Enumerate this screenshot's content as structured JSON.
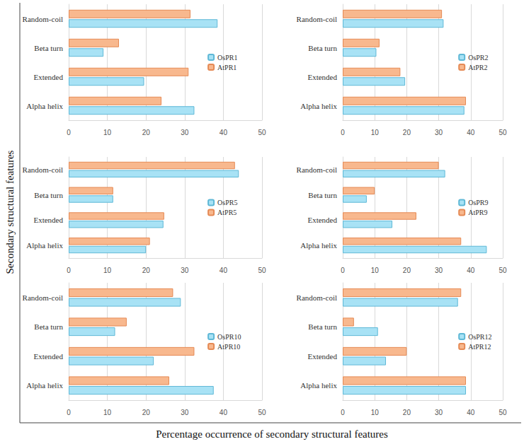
{
  "xlabel": "Percentage occurrence of secondary structural features",
  "ylabel": "Secondary structural features",
  "chart_data": [
    {
      "type": "bar",
      "orientation": "horizontal",
      "grid": true,
      "legend": "right",
      "categories": [
        "Alpha helix",
        "Extended",
        "Beta turn",
        "Random-coil"
      ],
      "series": [
        {
          "name": "OsPR1",
          "color": "#a8e2f5",
          "values": [
            32.5,
            19.5,
            9,
            38.5
          ]
        },
        {
          "name": "AtPR1",
          "color": "#f8b88e",
          "values": [
            24,
            31,
            13,
            31.5
          ]
        }
      ],
      "xlim": [
        0,
        50
      ],
      "xticks": [
        0,
        10,
        20,
        30,
        40,
        50
      ]
    },
    {
      "type": "bar",
      "orientation": "horizontal",
      "grid": true,
      "legend": "right",
      "categories": [
        "Alpha helix",
        "Extended",
        "Beta turn",
        "Random-coil"
      ],
      "series": [
        {
          "name": "OsPR2",
          "color": "#a8e2f5",
          "values": [
            38,
            19.5,
            10.5,
            31.5
          ]
        },
        {
          "name": "AtPR2",
          "color": "#f8b88e",
          "values": [
            38.5,
            18,
            11.5,
            31
          ]
        }
      ],
      "xlim": [
        0,
        50
      ],
      "xticks": [
        0,
        10,
        20,
        30,
        40,
        50
      ]
    },
    {
      "type": "bar",
      "orientation": "horizontal",
      "grid": true,
      "legend": "right",
      "categories": [
        "Alpha helix",
        "Extended",
        "Beta turn",
        "Random-coil"
      ],
      "series": [
        {
          "name": "OsPR5",
          "color": "#a8e2f5",
          "values": [
            20,
            24.5,
            11.5,
            44
          ]
        },
        {
          "name": "AtPR5",
          "color": "#f8b88e",
          "values": [
            21,
            24.7,
            11.5,
            43
          ]
        }
      ],
      "xlim": [
        0,
        50
      ],
      "xticks": [
        0,
        10,
        20,
        30,
        40,
        50
      ]
    },
    {
      "type": "bar",
      "orientation": "horizontal",
      "grid": true,
      "legend": "right",
      "categories": [
        "Alpha helix",
        "Extended",
        "Beta turn",
        "Random-coil"
      ],
      "series": [
        {
          "name": "OsPR9",
          "color": "#a8e2f5",
          "values": [
            45,
            15.5,
            7.5,
            32
          ]
        },
        {
          "name": "AtPR9",
          "color": "#f8b88e",
          "values": [
            37,
            23,
            10,
            30
          ]
        }
      ],
      "xlim": [
        0,
        50
      ],
      "xticks": [
        0,
        10,
        20,
        30,
        40,
        50
      ]
    },
    {
      "type": "bar",
      "orientation": "horizontal",
      "grid": true,
      "legend": "right",
      "categories": [
        "Alpha helix",
        "Extended",
        "Beta turn",
        "Random-coil"
      ],
      "series": [
        {
          "name": "OsPR10",
          "color": "#a8e2f5",
          "values": [
            37.5,
            22,
            12,
            29
          ]
        },
        {
          "name": "AtPR10",
          "color": "#f8b88e",
          "values": [
            26,
            32.5,
            15,
            27
          ]
        }
      ],
      "xlim": [
        0,
        50
      ],
      "xticks": [
        0,
        10,
        20,
        30,
        40,
        50
      ]
    },
    {
      "type": "bar",
      "orientation": "horizontal",
      "grid": true,
      "legend": "right",
      "categories": [
        "Alpha helix",
        "Extended",
        "Beta turn",
        "Random-coil"
      ],
      "series": [
        {
          "name": "OsPR12",
          "color": "#a8e2f5",
          "values": [
            38.5,
            13.5,
            11,
            36
          ]
        },
        {
          "name": "AtPR12",
          "color": "#f8b88e",
          "values": [
            38.5,
            20,
            3.5,
            37
          ]
        }
      ],
      "xlim": [
        0,
        50
      ],
      "xticks": [
        0,
        10,
        20,
        30,
        40,
        50
      ]
    }
  ]
}
